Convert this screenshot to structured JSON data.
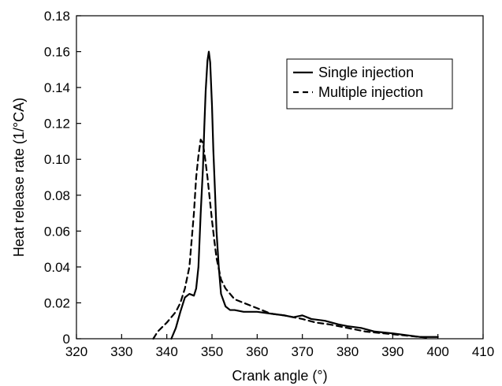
{
  "chart_data": {
    "type": "line",
    "xlabel": "Crank angle (°)",
    "ylabel": "Heat release rate (1/°CA)",
    "xlim": [
      320,
      410
    ],
    "ylim": [
      0,
      0.18
    ],
    "x_ticks": [
      320,
      330,
      340,
      350,
      360,
      370,
      380,
      390,
      400,
      410
    ],
    "y_ticks": [
      0,
      0.02,
      0.04,
      0.06,
      0.08,
      0.1,
      0.12,
      0.14,
      0.16,
      0.18
    ],
    "x_tick_labels": [
      "320",
      "330",
      "340",
      "350",
      "360",
      "370",
      "380",
      "390",
      "400",
      "410"
    ],
    "y_tick_labels": [
      "0",
      "0.02",
      "0.04",
      "0.06",
      "0.08",
      "0.10",
      "0.12",
      "0.14",
      "0.16",
      "0.18"
    ],
    "grid": false,
    "legend_position": "top-right",
    "series": [
      {
        "name": "Single injection",
        "style": "solid",
        "color": "#000000",
        "x": [
          341,
          342,
          343,
          344,
          345,
          346,
          346.5,
          347,
          347.5,
          348,
          348.3,
          348.6,
          349,
          349.3,
          349.6,
          350,
          350.3,
          350.7,
          351,
          351.5,
          352,
          353,
          354,
          355,
          357,
          360,
          363,
          366,
          368,
          370,
          372,
          375,
          378,
          380,
          383,
          386,
          390,
          393,
          396,
          398,
          400
        ],
        "y": [
          0,
          0.006,
          0.015,
          0.023,
          0.025,
          0.024,
          0.028,
          0.04,
          0.07,
          0.095,
          0.118,
          0.138,
          0.155,
          0.16,
          0.154,
          0.13,
          0.105,
          0.08,
          0.06,
          0.04,
          0.025,
          0.018,
          0.016,
          0.016,
          0.015,
          0.015,
          0.014,
          0.013,
          0.012,
          0.013,
          0.011,
          0.01,
          0.008,
          0.007,
          0.006,
          0.004,
          0.003,
          0.002,
          0.001,
          0.001,
          0.001
        ]
      },
      {
        "name": "Multiple injection",
        "style": "dashed",
        "color": "#000000",
        "x": [
          337,
          338,
          340,
          342,
          343,
          344,
          345,
          345.5,
          346,
          346.5,
          347,
          347.5,
          348,
          348.5,
          349,
          349.5,
          350,
          350.5,
          351,
          352,
          353,
          354,
          355,
          357,
          360,
          363,
          366,
          370,
          373,
          376,
          380,
          384,
          388,
          392,
          396,
          398
        ],
        "y": [
          0,
          0.004,
          0.009,
          0.015,
          0.02,
          0.028,
          0.04,
          0.055,
          0.07,
          0.09,
          0.102,
          0.111,
          0.109,
          0.1,
          0.09,
          0.078,
          0.066,
          0.055,
          0.045,
          0.033,
          0.028,
          0.025,
          0.022,
          0.02,
          0.017,
          0.014,
          0.013,
          0.011,
          0.009,
          0.008,
          0.006,
          0.004,
          0.003,
          0.002,
          0.001,
          0.0005
        ]
      }
    ]
  }
}
